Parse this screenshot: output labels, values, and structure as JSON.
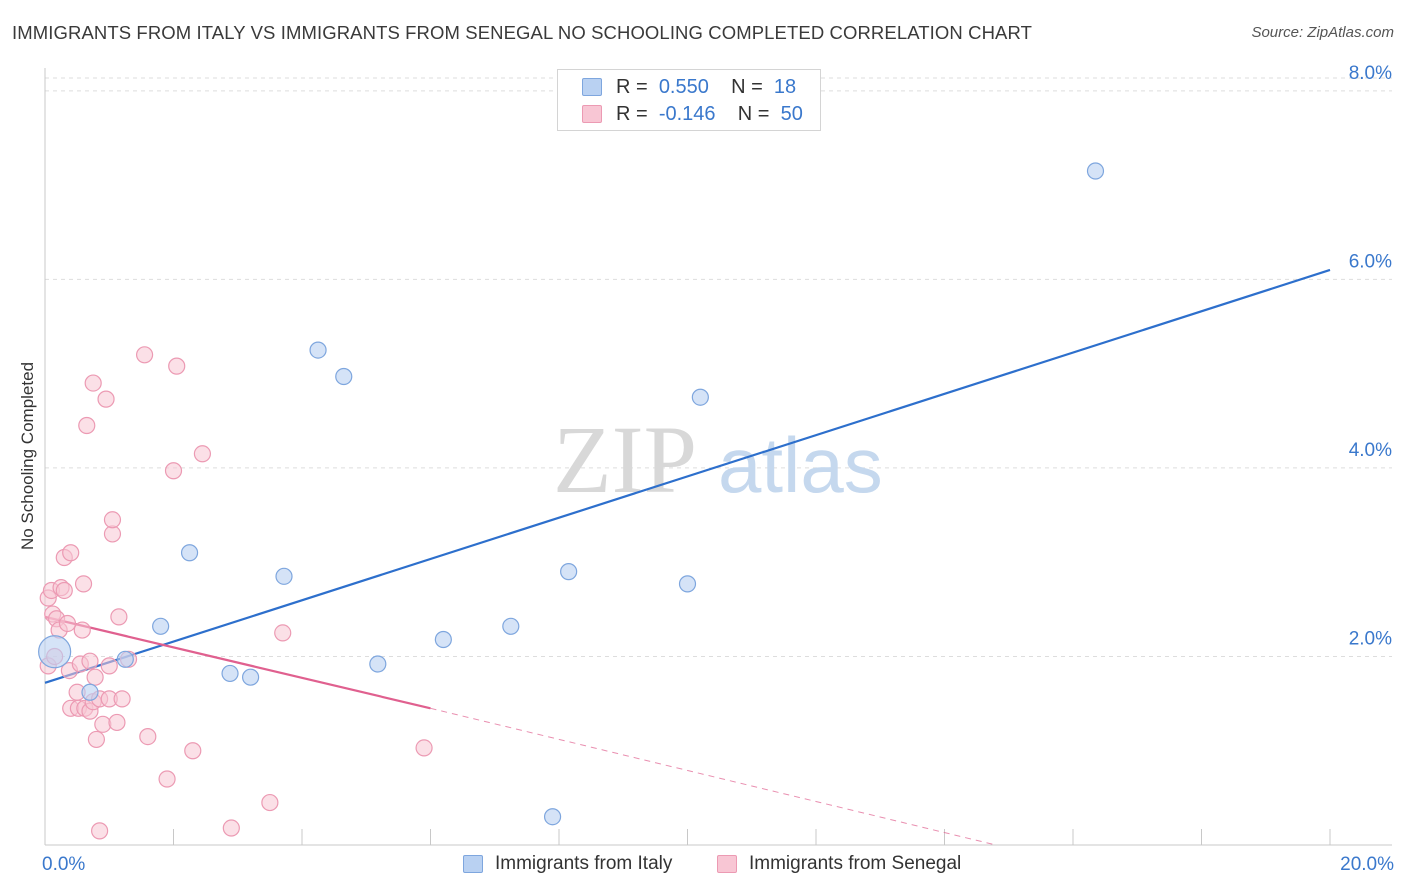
{
  "header": {
    "title": "IMMIGRANTS FROM ITALY VS IMMIGRANTS FROM SENEGAL NO SCHOOLING COMPLETED CORRELATION CHART",
    "source": "Source: ZipAtlas.com"
  },
  "legend": {
    "rows": [
      {
        "r_label": "R =",
        "r_value": "0.550",
        "n_label": "N =",
        "n_value": "18"
      },
      {
        "r_label": "R =",
        "r_value": "-0.146",
        "n_label": "N =",
        "n_value": "50"
      }
    ]
  },
  "watermark": {
    "part1": "ZIP",
    "part2": "atlas"
  },
  "colors": {
    "italy_fill": "#b9d1f2",
    "italy_stroke": "#7ea6de",
    "italy_line": "#2d6fcc",
    "senegal_fill": "#f8c6d4",
    "senegal_stroke": "#ec9ab3",
    "senegal_line": "#e0608f",
    "tick_label": "#3a78cc",
    "grid": "#dddddd"
  },
  "chart_data": {
    "type": "scatter",
    "title": "IMMIGRANTS FROM ITALY VS IMMIGRANTS FROM SENEGAL NO SCHOOLING COMPLETED CORRELATION CHART",
    "xlabel": "",
    "ylabel": "No Schooling Completed",
    "xlim": [
      0,
      20
    ],
    "ylim": [
      0,
      8.2
    ],
    "x_ticks": [
      0,
      2,
      4,
      6,
      8,
      10,
      12,
      14,
      16,
      18,
      20
    ],
    "x_tick_labels": [
      {
        "value": 0,
        "label": "0.0%"
      },
      {
        "value": 20,
        "label": "20.0%"
      }
    ],
    "y_ticks": [
      2,
      4,
      6,
      8
    ],
    "y_tick_labels": [
      "2.0%",
      "4.0%",
      "6.0%",
      "8.0%"
    ],
    "grid": true,
    "legend_position": "top-center",
    "series": [
      {
        "name": "Immigrants from Italy",
        "r": 0.55,
        "n": 18,
        "trend": {
          "x0": 0,
          "y0": 1.72,
          "x1": 20,
          "y1": 6.1
        },
        "points": [
          {
            "x": 0.15,
            "y": 2.05,
            "size": "large"
          },
          {
            "x": 0.7,
            "y": 1.62
          },
          {
            "x": 1.25,
            "y": 1.97
          },
          {
            "x": 1.8,
            "y": 2.32
          },
          {
            "x": 2.25,
            "y": 3.1
          },
          {
            "x": 2.88,
            "y": 1.82
          },
          {
            "x": 3.2,
            "y": 1.78
          },
          {
            "x": 3.72,
            "y": 2.85
          },
          {
            "x": 4.25,
            "y": 5.25
          },
          {
            "x": 4.65,
            "y": 4.97
          },
          {
            "x": 5.18,
            "y": 1.92
          },
          {
            "x": 6.2,
            "y": 2.18
          },
          {
            "x": 7.25,
            "y": 2.32
          },
          {
            "x": 7.9,
            "y": 0.3
          },
          {
            "x": 8.15,
            "y": 2.9
          },
          {
            "x": 10.0,
            "y": 2.77
          },
          {
            "x": 10.2,
            "y": 4.75
          },
          {
            "x": 16.35,
            "y": 7.15
          }
        ]
      },
      {
        "name": "Immigrants from Senegal",
        "r": -0.146,
        "n": 50,
        "trend": {
          "x0": 0,
          "y0": 2.42,
          "x1": 6.0,
          "y1": 1.45,
          "dash_to_x": 14.8,
          "dash_to_y": 0.0
        },
        "points": [
          {
            "x": 0.05,
            "y": 2.62
          },
          {
            "x": 0.05,
            "y": 1.9
          },
          {
            "x": 0.1,
            "y": 2.7
          },
          {
            "x": 0.12,
            "y": 2.45
          },
          {
            "x": 0.15,
            "y": 2.0
          },
          {
            "x": 0.18,
            "y": 2.4
          },
          {
            "x": 0.22,
            "y": 2.28
          },
          {
            "x": 0.25,
            "y": 2.73
          },
          {
            "x": 0.3,
            "y": 2.7
          },
          {
            "x": 0.3,
            "y": 3.05
          },
          {
            "x": 0.35,
            "y": 2.35
          },
          {
            "x": 0.38,
            "y": 1.85
          },
          {
            "x": 0.4,
            "y": 3.1
          },
          {
            "x": 0.4,
            "y": 1.45
          },
          {
            "x": 0.5,
            "y": 1.62
          },
          {
            "x": 0.52,
            "y": 1.45
          },
          {
            "x": 0.55,
            "y": 1.92
          },
          {
            "x": 0.58,
            "y": 2.28
          },
          {
            "x": 0.6,
            "y": 2.77
          },
          {
            "x": 0.62,
            "y": 1.45
          },
          {
            "x": 0.65,
            "y": 4.45
          },
          {
            "x": 0.7,
            "y": 1.95
          },
          {
            "x": 0.7,
            "y": 1.42
          },
          {
            "x": 0.75,
            "y": 1.52
          },
          {
            "x": 0.75,
            "y": 4.9
          },
          {
            "x": 0.78,
            "y": 1.78
          },
          {
            "x": 0.8,
            "y": 1.12
          },
          {
            "x": 0.85,
            "y": 1.55
          },
          {
            "x": 0.85,
            "y": 0.15
          },
          {
            "x": 0.9,
            "y": 1.28
          },
          {
            "x": 0.95,
            "y": 4.73
          },
          {
            "x": 1.0,
            "y": 1.55
          },
          {
            "x": 1.0,
            "y": 1.9
          },
          {
            "x": 1.05,
            "y": 3.3
          },
          {
            "x": 1.05,
            "y": 3.45
          },
          {
            "x": 1.12,
            "y": 1.3
          },
          {
            "x": 1.15,
            "y": 2.42
          },
          {
            "x": 1.2,
            "y": 1.55
          },
          {
            "x": 1.3,
            "y": 1.97
          },
          {
            "x": 1.55,
            "y": 5.2
          },
          {
            "x": 1.6,
            "y": 1.15
          },
          {
            "x": 1.9,
            "y": 0.7
          },
          {
            "x": 2.0,
            "y": 3.97
          },
          {
            "x": 2.05,
            "y": 5.08
          },
          {
            "x": 2.3,
            "y": 1.0
          },
          {
            "x": 2.45,
            "y": 4.15
          },
          {
            "x": 2.9,
            "y": 0.18
          },
          {
            "x": 3.5,
            "y": 0.45
          },
          {
            "x": 3.7,
            "y": 2.25
          },
          {
            "x": 5.9,
            "y": 1.03
          }
        ]
      }
    ]
  }
}
